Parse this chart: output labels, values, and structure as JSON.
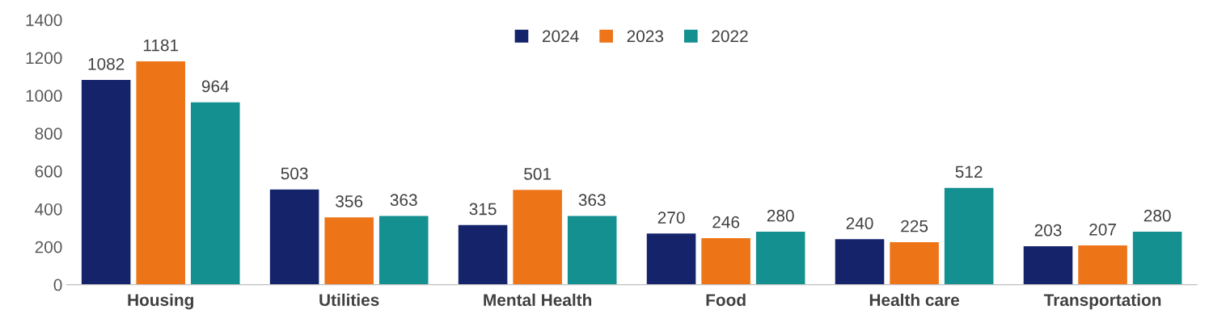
{
  "chart_data": {
    "type": "bar",
    "categories": [
      "Housing",
      "Utilities",
      "Mental Health",
      "Food",
      "Health care",
      "Transportation"
    ],
    "series": [
      {
        "name": "2024",
        "color": "#15236b",
        "values": [
          1082,
          503,
          315,
          270,
          240,
          203
        ]
      },
      {
        "name": "2023",
        "color": "#ee7418",
        "values": [
          1181,
          356,
          501,
          246,
          225,
          207
        ]
      },
      {
        "name": "2022",
        "color": "#149090",
        "values": [
          964,
          363,
          363,
          280,
          512,
          280
        ]
      }
    ],
    "ylim": [
      0,
      1400
    ],
    "yticks": [
      0,
      200,
      400,
      600,
      800,
      1000,
      1200,
      1400
    ],
    "grid": false,
    "legend": "top",
    "data_labels": true
  }
}
